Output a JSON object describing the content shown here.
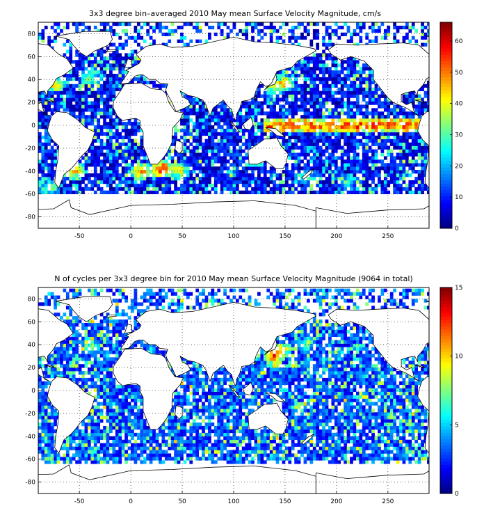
{
  "chart_data": [
    {
      "type": "heatmap",
      "title": "3x3 degree bin–averaged 2010 May mean Surface Velocity Magnitude, cm/s",
      "xlabel": "",
      "ylabel": "",
      "xlim": [
        -90,
        290
      ],
      "ylim": [
        -90,
        90
      ],
      "x_ticks": [
        -50,
        0,
        50,
        100,
        150,
        200,
        250
      ],
      "y_ticks": [
        -80,
        -60,
        -40,
        -20,
        0,
        20,
        40,
        60,
        80
      ],
      "grid": true,
      "bin_size_deg": 3,
      "colorbar": {
        "colormap": "jet",
        "range": [
          0,
          66
        ],
        "ticks": [
          0,
          10,
          20,
          30,
          40,
          50,
          60
        ]
      },
      "lat_band": [
        -60,
        88
      ],
      "baseline_level": 0.13,
      "hotspots": [
        {
          "lon": -75,
          "lat": 36,
          "level": 0.72
        },
        {
          "lon": -40,
          "lat": 43,
          "level": 0.55
        },
        {
          "lon": 148,
          "lat": 37,
          "level": 0.72
        },
        {
          "lon": 140,
          "lat": 34,
          "level": 0.6
        },
        {
          "lon": 10,
          "lat": -40,
          "level": 0.8
        },
        {
          "lon": 30,
          "lat": -38,
          "level": 0.92
        },
        {
          "lon": 45,
          "lat": -40,
          "level": 0.7
        },
        {
          "lon": -55,
          "lat": -40,
          "level": 0.7
        },
        {
          "lon": -80,
          "lat": -55,
          "level": 0.5
        },
        {
          "lon": 170,
          "lat": -45,
          "level": 0.45
        },
        {
          "lon": 210,
          "lat": -50,
          "level": 0.4
        }
      ],
      "equatorial_band": {
        "lon_from": 130,
        "lon_to": 285,
        "lat": 0,
        "level": 0.8
      }
    },
    {
      "type": "heatmap",
      "title": "N of cycles per 3x3 degree bin for 2010 May mean Surface Velocity Magnitude (9064 in total)",
      "xlabel": "",
      "ylabel": "",
      "xlim": [
        -90,
        290
      ],
      "ylim": [
        -90,
        90
      ],
      "x_ticks": [
        -50,
        0,
        50,
        100,
        150,
        200,
        250
      ],
      "y_ticks": [
        -80,
        -60,
        -40,
        -20,
        0,
        20,
        40,
        60,
        80
      ],
      "grid": true,
      "bin_size_deg": 3,
      "colorbar": {
        "colormap": "jet",
        "range": [
          0,
          15
        ],
        "ticks": [
          0,
          5,
          10,
          15
        ]
      },
      "lat_band": [
        -64,
        88
      ],
      "baseline_level": 0.2,
      "hotspots": [
        {
          "lon": 140,
          "lat": 30,
          "level": 0.85
        },
        {
          "lon": 145,
          "lat": 35,
          "level": 0.75
        },
        {
          "lon": -40,
          "lat": 40,
          "level": 0.5
        },
        {
          "lon": 170,
          "lat": 40,
          "level": 0.5
        }
      ],
      "equatorial_band": null
    }
  ]
}
